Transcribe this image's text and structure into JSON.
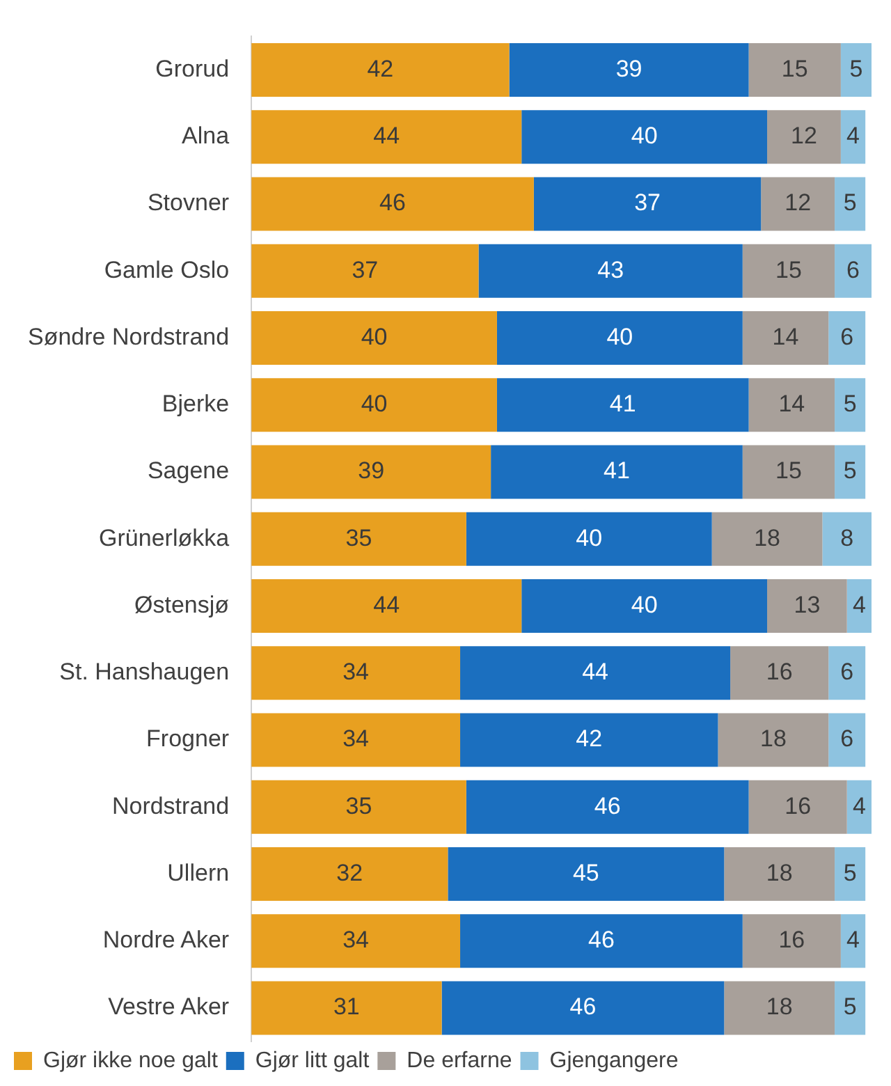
{
  "chart_data": {
    "type": "bar",
    "orientation": "horizontal",
    "stacked": true,
    "data_labels": true,
    "legend": "bottom",
    "tick_labels": "y",
    "categories": [
      "Grorud",
      "Alna",
      "Stovner",
      "Gamle Oslo",
      "Søndre Nordstrand",
      "Bjerke",
      "Sagene",
      "Grünerløkka",
      "Østensjø",
      "St. Hanshaugen",
      "Frogner",
      "Nordstrand",
      "Ullern",
      "Nordre Aker",
      "Vestre Aker"
    ],
    "series": [
      {
        "name": "Gjør ikke noe galt",
        "color": "#e8a020",
        "values": [
          42,
          44,
          46,
          37,
          40,
          40,
          39,
          35,
          44,
          34,
          34,
          35,
          32,
          34,
          31
        ]
      },
      {
        "name": "Gjør litt galt",
        "color": "#1b6fbf",
        "values": [
          39,
          40,
          37,
          43,
          40,
          41,
          41,
          40,
          40,
          44,
          42,
          46,
          45,
          46,
          46
        ]
      },
      {
        "name": "De erfarne",
        "color": "#a8a09a",
        "values": [
          15,
          12,
          12,
          15,
          14,
          14,
          15,
          18,
          13,
          16,
          18,
          16,
          18,
          16,
          18
        ]
      },
      {
        "name": "Gjengangere",
        "color": "#8ec3e0",
        "values": [
          5,
          4,
          5,
          6,
          6,
          5,
          5,
          8,
          4,
          6,
          6,
          4,
          5,
          4,
          5
        ]
      }
    ]
  }
}
